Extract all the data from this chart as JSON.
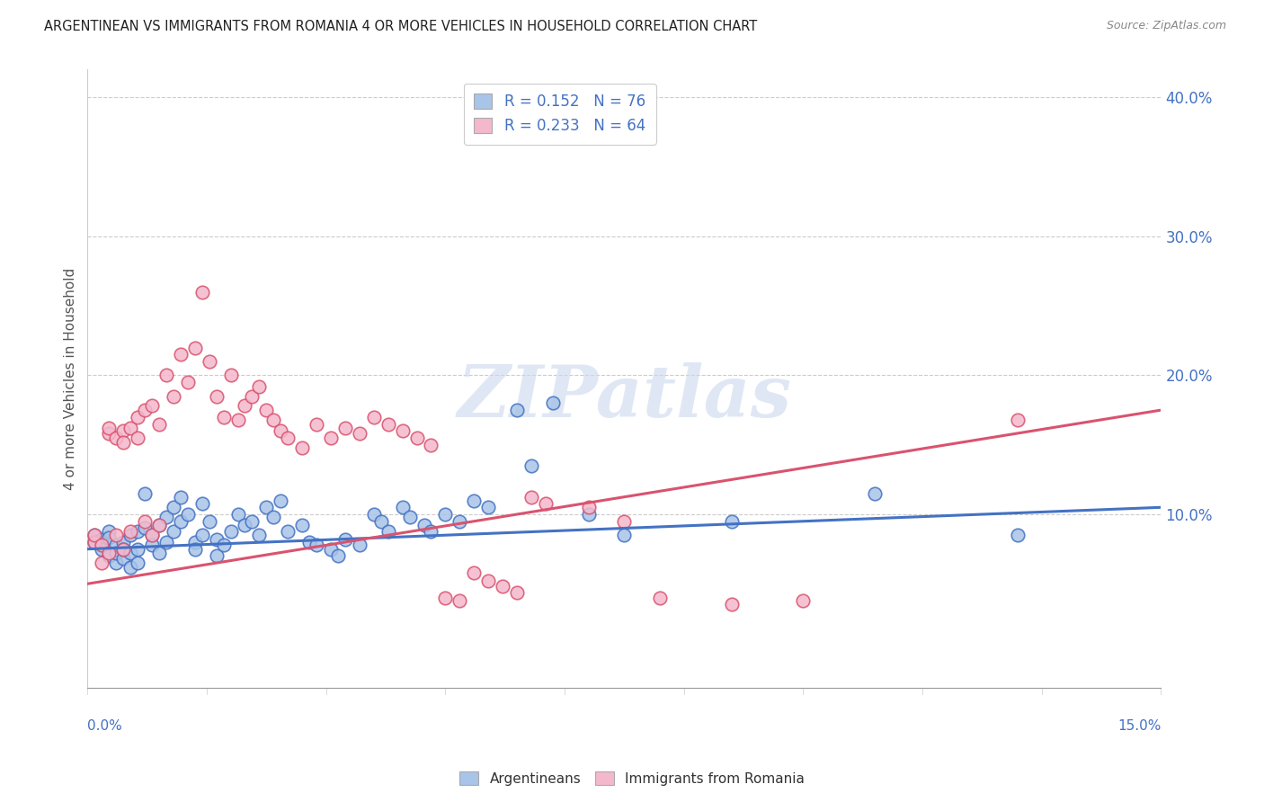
{
  "title": "ARGENTINEAN VS IMMIGRANTS FROM ROMANIA 4 OR MORE VEHICLES IN HOUSEHOLD CORRELATION CHART",
  "source": "Source: ZipAtlas.com",
  "ylabel": "4 or more Vehicles in Household",
  "legend_label1": "Argentineans",
  "legend_label2": "Immigrants from Romania",
  "R_blue": 0.152,
  "N_blue": 76,
  "R_pink": 0.233,
  "N_pink": 64,
  "color_blue": "#a8c4e8",
  "color_pink": "#f4b8cc",
  "line_blue": "#4472c4",
  "line_pink": "#d9536f",
  "watermark": "ZIPatlas",
  "xmin": 0.0,
  "xmax": 0.15,
  "ymin": -0.025,
  "ymax": 0.42,
  "ytick_vals": [
    0.0,
    0.1,
    0.2,
    0.3,
    0.4
  ],
  "blue_x": [
    0.001,
    0.001,
    0.002,
    0.002,
    0.002,
    0.003,
    0.003,
    0.003,
    0.004,
    0.004,
    0.004,
    0.005,
    0.005,
    0.005,
    0.006,
    0.006,
    0.006,
    0.007,
    0.007,
    0.007,
    0.008,
    0.008,
    0.009,
    0.009,
    0.01,
    0.01,
    0.011,
    0.011,
    0.012,
    0.012,
    0.013,
    0.013,
    0.014,
    0.015,
    0.015,
    0.016,
    0.016,
    0.017,
    0.018,
    0.018,
    0.019,
    0.02,
    0.021,
    0.022,
    0.023,
    0.024,
    0.025,
    0.026,
    0.027,
    0.028,
    0.03,
    0.031,
    0.032,
    0.034,
    0.035,
    0.036,
    0.038,
    0.04,
    0.041,
    0.042,
    0.044,
    0.045,
    0.047,
    0.048,
    0.05,
    0.052,
    0.054,
    0.056,
    0.06,
    0.062,
    0.065,
    0.07,
    0.075,
    0.09,
    0.11,
    0.13
  ],
  "blue_y": [
    0.08,
    0.085,
    0.078,
    0.082,
    0.075,
    0.088,
    0.083,
    0.07,
    0.078,
    0.065,
    0.072,
    0.08,
    0.068,
    0.075,
    0.085,
    0.072,
    0.062,
    0.088,
    0.075,
    0.065,
    0.115,
    0.09,
    0.085,
    0.078,
    0.092,
    0.072,
    0.098,
    0.08,
    0.105,
    0.088,
    0.112,
    0.095,
    0.1,
    0.08,
    0.075,
    0.108,
    0.085,
    0.095,
    0.082,
    0.07,
    0.078,
    0.088,
    0.1,
    0.092,
    0.095,
    0.085,
    0.105,
    0.098,
    0.11,
    0.088,
    0.092,
    0.08,
    0.078,
    0.075,
    0.07,
    0.082,
    0.078,
    0.1,
    0.095,
    0.088,
    0.105,
    0.098,
    0.092,
    0.088,
    0.1,
    0.095,
    0.11,
    0.105,
    0.175,
    0.135,
    0.18,
    0.1,
    0.085,
    0.095,
    0.115,
    0.085
  ],
  "pink_x": [
    0.001,
    0.001,
    0.002,
    0.002,
    0.003,
    0.003,
    0.003,
    0.004,
    0.004,
    0.005,
    0.005,
    0.005,
    0.006,
    0.006,
    0.007,
    0.007,
    0.008,
    0.008,
    0.009,
    0.009,
    0.01,
    0.01,
    0.011,
    0.012,
    0.013,
    0.014,
    0.015,
    0.016,
    0.017,
    0.018,
    0.019,
    0.02,
    0.021,
    0.022,
    0.023,
    0.024,
    0.025,
    0.026,
    0.027,
    0.028,
    0.03,
    0.032,
    0.034,
    0.036,
    0.038,
    0.04,
    0.042,
    0.044,
    0.046,
    0.048,
    0.05,
    0.052,
    0.054,
    0.056,
    0.058,
    0.06,
    0.062,
    0.064,
    0.07,
    0.075,
    0.08,
    0.09,
    0.1,
    0.13
  ],
  "pink_y": [
    0.08,
    0.085,
    0.078,
    0.065,
    0.158,
    0.162,
    0.072,
    0.155,
    0.085,
    0.16,
    0.152,
    0.075,
    0.162,
    0.088,
    0.17,
    0.155,
    0.175,
    0.095,
    0.178,
    0.085,
    0.165,
    0.092,
    0.2,
    0.185,
    0.215,
    0.195,
    0.22,
    0.26,
    0.21,
    0.185,
    0.17,
    0.2,
    0.168,
    0.178,
    0.185,
    0.192,
    0.175,
    0.168,
    0.16,
    0.155,
    0.148,
    0.165,
    0.155,
    0.162,
    0.158,
    0.17,
    0.165,
    0.16,
    0.155,
    0.15,
    0.04,
    0.038,
    0.058,
    0.052,
    0.048,
    0.044,
    0.112,
    0.108,
    0.105,
    0.095,
    0.04,
    0.035,
    0.038,
    0.168
  ]
}
